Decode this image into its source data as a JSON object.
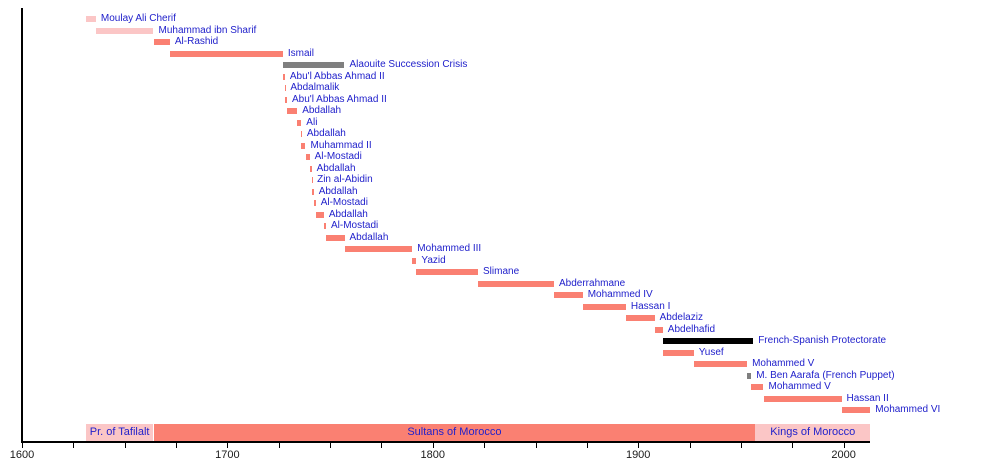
{
  "colors": {
    "salmon": "#fa8072",
    "pink": "#fbc6c6",
    "gray": "#7f7f7f",
    "black": "#000000",
    "label_blue": "#2121cb",
    "axis": "#000000",
    "tick_label": "#1a1a1a",
    "background": "#ffffff"
  },
  "chart_data": {
    "type": "timeline",
    "legend_position": "none",
    "grid": false,
    "x_axis": {
      "start_year": 1600,
      "end_year": 2013,
      "major_ticks": [
        1600,
        1700,
        1800,
        1900,
        2000
      ],
      "major_tick_labels": [
        "1600",
        "1700",
        "1800",
        "1900",
        "2000"
      ],
      "minor_tick_step": 25
    },
    "rows": [
      {
        "label": "Moulay Ali Cherif",
        "start": 1631,
        "end": 1636,
        "color": "pink"
      },
      {
        "label": "Muhammad ibn Sharif",
        "start": 1636,
        "end": 1664,
        "color": "pink"
      },
      {
        "label": "Al-Rashid",
        "start": 1664,
        "end": 1672,
        "color": "salmon"
      },
      {
        "label": "Ismail",
        "start": 1672,
        "end": 1727,
        "color": "salmon"
      },
      {
        "label": "Alaouite Succession Crisis",
        "start": 1727,
        "end": 1757,
        "color": "gray"
      },
      {
        "label": "Abu'l Abbas Ahmad II",
        "start": 1727,
        "end": 1728,
        "color": "salmon"
      },
      {
        "label": "Abdalmalik",
        "start": 1728,
        "end": 1728.25,
        "color": "salmon"
      },
      {
        "label": "Abu'l Abbas Ahmad II",
        "start": 1728,
        "end": 1729,
        "color": "salmon"
      },
      {
        "label": "Abdallah",
        "start": 1729,
        "end": 1734,
        "color": "salmon"
      },
      {
        "label": "Ali",
        "start": 1734,
        "end": 1736,
        "color": "salmon"
      },
      {
        "label": "Abdallah",
        "start": 1736,
        "end": 1736.25,
        "color": "salmon"
      },
      {
        "label": "Muhammad II",
        "start": 1736,
        "end": 1738,
        "color": "salmon"
      },
      {
        "label": "Al-Mostadi",
        "start": 1738,
        "end": 1740,
        "color": "salmon"
      },
      {
        "label": "Abdallah",
        "start": 1740,
        "end": 1741,
        "color": "salmon"
      },
      {
        "label": "Zin al-Abidin",
        "start": 1741,
        "end": 1741.25,
        "color": "salmon"
      },
      {
        "label": "Abdallah",
        "start": 1741,
        "end": 1742,
        "color": "salmon"
      },
      {
        "label": "Al-Mostadi",
        "start": 1742,
        "end": 1743,
        "color": "salmon"
      },
      {
        "label": "Abdallah",
        "start": 1743,
        "end": 1747,
        "color": "salmon"
      },
      {
        "label": "Al-Mostadi",
        "start": 1747,
        "end": 1748,
        "color": "salmon"
      },
      {
        "label": "Abdallah",
        "start": 1748,
        "end": 1757,
        "color": "salmon"
      },
      {
        "label": "Mohammed III",
        "start": 1757,
        "end": 1790,
        "color": "salmon"
      },
      {
        "label": "Yazid",
        "start": 1790,
        "end": 1792,
        "color": "salmon"
      },
      {
        "label": "Slimane",
        "start": 1792,
        "end": 1822,
        "color": "salmon"
      },
      {
        "label": "Abderrahmane",
        "start": 1822,
        "end": 1859,
        "color": "salmon"
      },
      {
        "label": "Mohammed IV",
        "start": 1859,
        "end": 1873,
        "color": "salmon"
      },
      {
        "label": "Hassan I",
        "start": 1873,
        "end": 1894,
        "color": "salmon"
      },
      {
        "label": "Abdelaziz",
        "start": 1894,
        "end": 1908,
        "color": "salmon"
      },
      {
        "label": "Abdelhafid",
        "start": 1908,
        "end": 1912,
        "color": "salmon"
      },
      {
        "label": "French-Spanish Protectorate",
        "start": 1912,
        "end": 1956,
        "color": "black"
      },
      {
        "label": "Yusef",
        "start": 1912,
        "end": 1927,
        "color": "salmon"
      },
      {
        "label": "Mohammed V",
        "start": 1927,
        "end": 1953,
        "color": "salmon"
      },
      {
        "label": "M. Ben Aarafa (French Puppet)",
        "start": 1953,
        "end": 1955,
        "color": "gray"
      },
      {
        "label": "Mohammed V",
        "start": 1955,
        "end": 1961,
        "color": "salmon"
      },
      {
        "label": "Hassan II",
        "start": 1961,
        "end": 1999,
        "color": "salmon"
      },
      {
        "label": "Mohammed VI",
        "start": 1999,
        "end": 2013,
        "color": "salmon"
      }
    ],
    "eras": [
      {
        "label": "Pr. of Tafilalt",
        "start": 1631,
        "end": 1664,
        "color": "pink"
      },
      {
        "label": "Sultans of Morocco",
        "start": 1664,
        "end": 1957,
        "color": "salmon"
      },
      {
        "label": "Kings of Morocco",
        "start": 1957,
        "end": 2013,
        "color": "pink"
      }
    ]
  }
}
